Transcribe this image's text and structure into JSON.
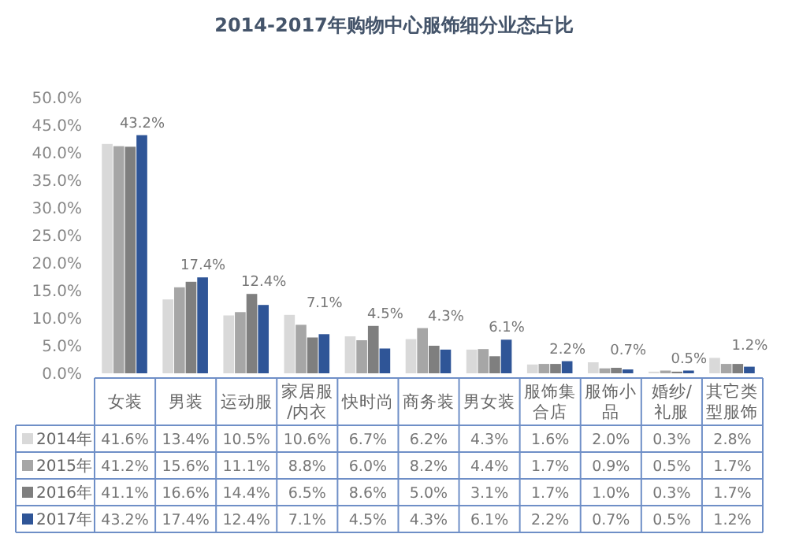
{
  "chart_data": {
    "type": "bar",
    "title": "2014-2017年购物中心服饰细分业态占比",
    "categories": [
      "女装",
      "男装",
      "运动服",
      "家居服/内衣",
      "快时尚",
      "商务装",
      "男女装",
      "服饰集合店",
      "服饰小品",
      "婚纱/礼服",
      "其它类型服饰"
    ],
    "series": [
      {
        "name": "2014年",
        "color": "#d9d9d9",
        "values": [
          41.6,
          13.4,
          10.5,
          10.6,
          6.7,
          6.2,
          4.3,
          1.6,
          2.0,
          0.3,
          2.8
        ],
        "value_labels": [
          "41.6%",
          "13.4%",
          "10.5%",
          "10.6%",
          "6.7%",
          "6.2%",
          "4.3%",
          "1.6%",
          "2.0%",
          "0.3%",
          "2.8%"
        ]
      },
      {
        "name": "2015年",
        "color": "#a6a6a6",
        "values": [
          41.2,
          15.6,
          11.1,
          8.8,
          6.0,
          8.2,
          4.4,
          1.7,
          0.9,
          0.5,
          1.7
        ],
        "value_labels": [
          "41.2%",
          "15.6%",
          "11.1%",
          "8.8%",
          "6.0%",
          "8.2%",
          "4.4%",
          "1.7%",
          "0.9%",
          "0.5%",
          "1.7%"
        ]
      },
      {
        "name": "2016年",
        "color": "#7f7f7f",
        "values": [
          41.1,
          16.6,
          14.4,
          6.5,
          8.6,
          5.0,
          3.1,
          1.7,
          1.0,
          0.3,
          1.7
        ],
        "value_labels": [
          "41.1%",
          "16.6%",
          "14.4%",
          "6.5%",
          "8.6%",
          "5.0%",
          "3.1%",
          "1.7%",
          "1.0%",
          "0.3%",
          "1.7%"
        ]
      },
      {
        "name": "2017年",
        "color": "#2f5597",
        "values": [
          43.2,
          17.4,
          12.4,
          7.1,
          4.5,
          4.3,
          6.1,
          2.2,
          0.7,
          0.5,
          1.2
        ],
        "value_labels": [
          "43.2%",
          "17.4%",
          "12.4%",
          "7.1%",
          "4.5%",
          "4.3%",
          "6.1%",
          "2.2%",
          "0.7%",
          "0.5%",
          "1.2%"
        ]
      }
    ],
    "ylim": [
      0,
      50
    ],
    "yticks": [
      {
        "value": 0,
        "label": "0.0%"
      },
      {
        "value": 5,
        "label": "5.0%"
      },
      {
        "value": 10,
        "label": "10.0%"
      },
      {
        "value": 15,
        "label": "15.0%"
      },
      {
        "value": 20,
        "label": "20.0%"
      },
      {
        "value": 25,
        "label": "25.0%"
      },
      {
        "value": 30,
        "label": "30.0%"
      },
      {
        "value": 35,
        "label": "35.0%"
      },
      {
        "value": 40,
        "label": "40.0%"
      },
      {
        "value": 45,
        "label": "45.0%"
      },
      {
        "value": 50,
        "label": "50.0%"
      }
    ],
    "grid": false,
    "legend": "bottom left"
  }
}
